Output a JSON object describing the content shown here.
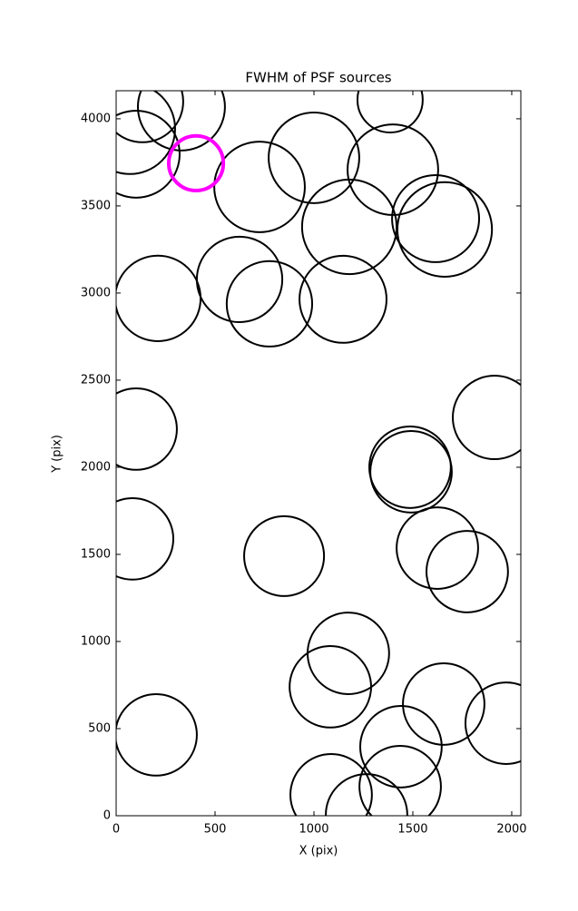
{
  "chart_data": {
    "type": "scatter",
    "title": "FWHM of PSF sources",
    "x_label": "X (pix)",
    "y_label": "Y (pix)",
    "xlim": [
      0,
      2046
    ],
    "ylim": [
      0,
      4161
    ],
    "xticks": [
      0,
      500,
      1000,
      1500,
      2000
    ],
    "yticks": [
      0,
      500,
      1000,
      1500,
      2000,
      2500,
      3000,
      3500,
      4000
    ],
    "series": [
      {
        "color": "#000000",
        "x": [
          133,
          330,
          69,
          101,
          725,
          1000,
          1385,
          1399,
          1179,
          1615,
          1661,
          624,
          775,
          1147,
          211,
          101,
          1913,
          1486,
          1491,
          83,
          849,
          1624,
          1775,
          1174,
          1083,
          1656,
          1972,
          1440,
          1436,
          1087,
          1266,
          202
        ],
        "values": [
          4099,
          4068,
          3943,
          3797,
          3609,
          3776,
          4109,
          3708,
          3380,
          3427,
          3365,
          3078,
          2938,
          2964,
          2969,
          2219,
          2286,
          2000,
          1974,
          1589,
          1490,
          1536,
          1401,
          932,
          740,
          641,
          531,
          396,
          167,
          120,
          5,
          464
        ],
        "sizes": [
          206,
          220,
          229,
          220,
          229,
          229,
          165,
          229,
          239,
          220,
          239,
          216,
          216,
          220,
          216,
          206,
          211,
          206,
          206,
          206,
          202,
          206,
          206,
          206,
          206,
          206,
          206,
          206,
          206,
          206,
          206,
          206
        ]
      },
      {
        "color": "#ff00ff",
        "x": [
          404
        ],
        "values": [
          3745
        ],
        "sizes": [
          138
        ]
      }
    ]
  }
}
